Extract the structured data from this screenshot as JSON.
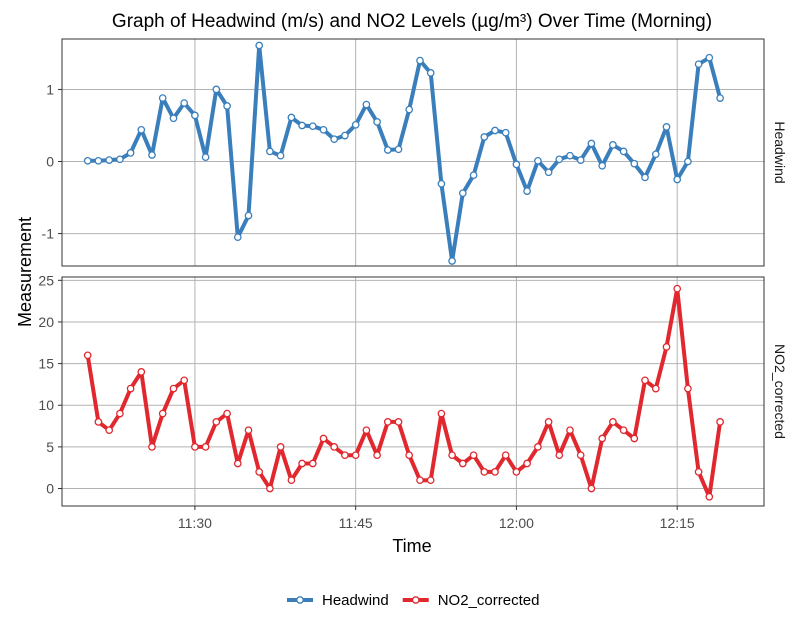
{
  "chart_data": {
    "type": "line",
    "title": "Graph of Headwind (m/s) and NO2 Levels (µg/m³) Over Time (Morning)",
    "xlabel": "Time",
    "ylabel": "Measurement",
    "x_ticks": [
      "11:30",
      "11:45",
      "12:00",
      "12:15"
    ],
    "x_tick_minutes": [
      690,
      705,
      720,
      735
    ],
    "xlim_minutes": [
      677.6,
      743.1
    ],
    "time_start": "11:20",
    "time_step_minutes": 1,
    "grid": true,
    "legend_position": "bottom",
    "panels": [
      {
        "label": "Headwind",
        "ylim": [
          -1.45,
          1.7
        ],
        "y_ticks": [
          -1,
          0,
          1
        ],
        "series": [
          {
            "name": "Headwind",
            "color": "#3a7fbc",
            "values": [
              0.01,
              0.01,
              0.02,
              0.03,
              0.12,
              0.44,
              0.09,
              0.88,
              0.6,
              0.81,
              0.64,
              0.06,
              1.0,
              0.77,
              -1.05,
              -0.75,
              1.61,
              0.14,
              0.08,
              0.61,
              0.5,
              0.49,
              0.44,
              0.31,
              0.36,
              0.51,
              0.79,
              0.55,
              0.16,
              0.17,
              0.72,
              1.4,
              1.23,
              -0.31,
              -1.38,
              -0.44,
              -0.19,
              0.34,
              0.43,
              0.4,
              -0.04,
              -0.41,
              0.01,
              -0.15,
              0.03,
              0.08,
              0.02,
              0.25,
              -0.06,
              0.23,
              0.14,
              -0.03,
              -0.22,
              0.1,
              0.48,
              -0.25,
              0.0,
              1.35,
              1.44,
              0.88
            ]
          }
        ]
      },
      {
        "label": "NO2_corrected",
        "ylim": [
          -2.1,
          25.4
        ],
        "y_ticks": [
          0,
          5,
          10,
          15,
          20,
          25
        ],
        "series": [
          {
            "name": "NO2_corrected",
            "color": "#e0282e",
            "values": [
              16,
              8,
              7,
              9,
              12,
              14,
              5,
              9,
              12,
              13,
              5,
              5,
              8,
              9,
              3,
              7,
              2,
              0,
              5,
              1,
              3,
              3,
              6,
              5,
              4,
              4,
              7,
              4,
              8,
              8,
              4,
              1,
              1,
              9,
              4,
              3,
              4,
              2,
              2,
              4,
              2,
              3,
              5,
              8,
              4,
              7,
              4,
              0,
              6,
              8,
              7,
              6,
              13,
              12,
              17,
              24,
              12,
              2,
              -1,
              8
            ]
          }
        ]
      }
    ]
  }
}
